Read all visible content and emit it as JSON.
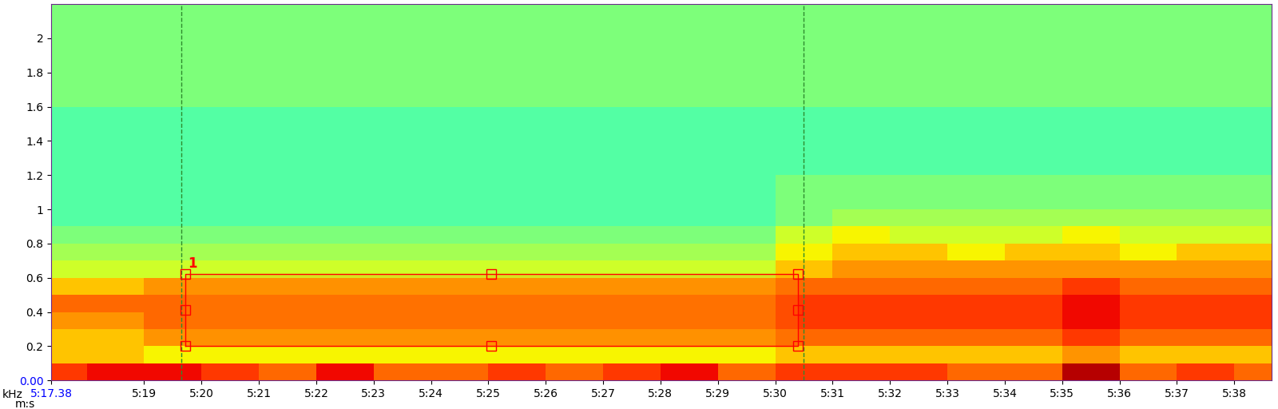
{
  "chart_data": {
    "type": "spectrogram",
    "x_label": "m:s",
    "y_label": "kHz",
    "xlim": [
      317.38,
      338.65
    ],
    "ylim": [
      0,
      2.2
    ],
    "xticks": [
      {
        "value": 317.38,
        "label": "5:17.38"
      },
      {
        "value": 319,
        "label": "5:19"
      },
      {
        "value": 320,
        "label": "5:20"
      },
      {
        "value": 321,
        "label": "5:21"
      },
      {
        "value": 322,
        "label": "5:22"
      },
      {
        "value": 323,
        "label": "5:23"
      },
      {
        "value": 324,
        "label": "5:24"
      },
      {
        "value": 325,
        "label": "5:25"
      },
      {
        "value": 326,
        "label": "5:26"
      },
      {
        "value": 327,
        "label": "5:27"
      },
      {
        "value": 328,
        "label": "5:28"
      },
      {
        "value": 329,
        "label": "5:29"
      },
      {
        "value": 330,
        "label": "5:30"
      },
      {
        "value": 331,
        "label": "5:31"
      },
      {
        "value": 332,
        "label": "5:32"
      },
      {
        "value": 333,
        "label": "5:33"
      },
      {
        "value": 334,
        "label": "5:34"
      },
      {
        "value": 335,
        "label": "5:35"
      },
      {
        "value": 336,
        "label": "5:36"
      },
      {
        "value": 337,
        "label": "5:37"
      },
      {
        "value": 338,
        "label": "5:38"
      }
    ],
    "yticks": [
      {
        "value": 0,
        "label": "0.00"
      },
      0.2,
      0.4,
      0.6,
      0.8,
      1,
      1.2,
      1.4,
      1.6,
      1.8,
      2
    ],
    "time_edges": [
      317.38,
      318,
      319,
      320,
      321,
      322,
      323,
      324,
      325,
      326,
      327,
      328,
      329,
      330,
      331,
      332,
      333,
      334,
      335,
      336,
      337,
      338,
      338.65
    ],
    "freq_edges": [
      0,
      0.1,
      0.2,
      0.3,
      0.4,
      0.5,
      0.6,
      0.7,
      0.8,
      0.9,
      1.0,
      1.2,
      1.4,
      1.6,
      1.8,
      2.0,
      2.2
    ],
    "color_range": [
      0,
      10
    ],
    "cells": [
      [
        8.5,
        9,
        9,
        8.5,
        8,
        9,
        8,
        8,
        8.5,
        8,
        8.5,
        9,
        8,
        8.5,
        8.5,
        8.5,
        8,
        8,
        9.5,
        8,
        8.5,
        8
      ],
      [
        7,
        7,
        6.5,
        6.5,
        6.5,
        6.5,
        6.5,
        6.5,
        6.5,
        6.5,
        6.5,
        6.5,
        6.5,
        7,
        7,
        7,
        7,
        7,
        7.5,
        7,
        7,
        7
      ],
      [
        7,
        7,
        7.5,
        7.5,
        7.5,
        7.5,
        7.5,
        7.5,
        7.5,
        7.5,
        7.5,
        7.5,
        7.5,
        8,
        8,
        8,
        8,
        8,
        8.5,
        8,
        8,
        8
      ],
      [
        7.5,
        7.5,
        8,
        8,
        8,
        8,
        8,
        8,
        8,
        8,
        8,
        8,
        8,
        8.5,
        8.5,
        8.5,
        8.5,
        8.5,
        9,
        8.5,
        8.5,
        8.5
      ],
      [
        8,
        8,
        8,
        8,
        8,
        8,
        8,
        8,
        8,
        8,
        8,
        8,
        8,
        8.5,
        8.5,
        8.5,
        8.5,
        8.5,
        9,
        8.5,
        8.5,
        8.5
      ],
      [
        7,
        7,
        7.5,
        7.5,
        7.5,
        7.5,
        7.5,
        7.5,
        7.5,
        7.5,
        7.5,
        7.5,
        7.5,
        8,
        8,
        8,
        8,
        8,
        8.5,
        8,
        8,
        8
      ],
      [
        6,
        6,
        6,
        6,
        6,
        6,
        6,
        6,
        6,
        6,
        6,
        6,
        6,
        7,
        7.5,
        7.5,
        7.5,
        7.5,
        7.5,
        7.5,
        7.5,
        7.5
      ],
      [
        5.5,
        5.5,
        5.5,
        5.5,
        5.5,
        5.5,
        5.5,
        5.5,
        5.5,
        5.5,
        5.5,
        5.5,
        5.5,
        6.5,
        7,
        7,
        6.5,
        7,
        7,
        6.5,
        7,
        7
      ],
      [
        5,
        5,
        5,
        5,
        5,
        5,
        5,
        5,
        5,
        5,
        5,
        5,
        5,
        6,
        6.5,
        6,
        6,
        6,
        6.5,
        6,
        6,
        6
      ],
      [
        4.5,
        4.5,
        4.5,
        4.5,
        4.5,
        4.5,
        4.5,
        4.5,
        4.5,
        4.5,
        4.5,
        4.5,
        4.5,
        5,
        5.5,
        5.5,
        5.5,
        5.5,
        5.5,
        5.5,
        5.5,
        5.5
      ],
      [
        4.5,
        4.5,
        4.5,
        4.5,
        4.5,
        4.5,
        4.5,
        4.5,
        4.5,
        4.5,
        4.5,
        4.5,
        4.5,
        5,
        5,
        5,
        5,
        5,
        5,
        5,
        5,
        5
      ],
      [
        4.5,
        4.5,
        4.5,
        4.5,
        4.5,
        4.5,
        4.5,
        4.5,
        4.5,
        4.5,
        4.5,
        4.5,
        4.5,
        4.5,
        4.5,
        4.5,
        4.5,
        4.5,
        4.5,
        4.5,
        4.5,
        4.5
      ],
      [
        4.5,
        4.5,
        4.5,
        4.5,
        4.5,
        4.5,
        4.5,
        4.5,
        4.5,
        4.5,
        4.5,
        4.5,
        4.5,
        4.5,
        4.5,
        4.5,
        4.5,
        4.5,
        4.5,
        4.5,
        4.5,
        4.5
      ],
      [
        5,
        5,
        5,
        5,
        5,
        5,
        5,
        5,
        5,
        5,
        5,
        5,
        5,
        5,
        5,
        5,
        5,
        5,
        5,
        5,
        5,
        5
      ],
      [
        5,
        5,
        5,
        5,
        5,
        5,
        5,
        5,
        5,
        5,
        5,
        5,
        5,
        5,
        5,
        5,
        5,
        5,
        5,
        5,
        5,
        5
      ],
      [
        5,
        5,
        5,
        5,
        5,
        5,
        5,
        5,
        5,
        5,
        5,
        5,
        5,
        5,
        5,
        5,
        5,
        5,
        5,
        5,
        5,
        5
      ]
    ],
    "view_lines": [
      319.65,
      330.49
    ],
    "selection": {
      "label": "1",
      "time": [
        319.72,
        330.39
      ],
      "freq": [
        0.2,
        0.62
      ]
    }
  }
}
